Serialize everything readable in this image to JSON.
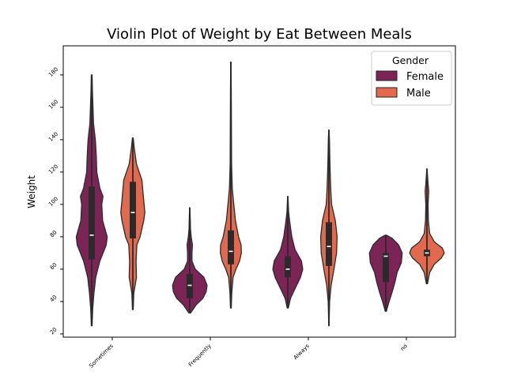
{
  "chart_data": {
    "type": "violin",
    "title": "Violin Plot of Weight by Eat Between Meals",
    "xlabel": "",
    "ylabel": "Weight",
    "ylim": [
      18,
      198
    ],
    "yticks": [
      20,
      40,
      60,
      80,
      100,
      120,
      140,
      160,
      180
    ],
    "categories": [
      "Sometimes",
      "Frequently",
      "Always",
      "no"
    ],
    "legend": {
      "title": "Gender",
      "position": "top-right"
    },
    "series": [
      {
        "name": "Female",
        "color": "#7b2455",
        "violins": [
          {
            "min": 25,
            "max": 180,
            "q1": 66,
            "median": 81,
            "q3": 111,
            "density": [
              [
                25,
                0.02
              ],
              [
                35,
                0.05
              ],
              [
                45,
                0.12
              ],
              [
                55,
                0.22
              ],
              [
                65,
                0.45
              ],
              [
                75,
                0.8
              ],
              [
                80,
                0.85
              ],
              [
                90,
                0.6
              ],
              [
                100,
                0.55
              ],
              [
                105,
                0.62
              ],
              [
                110,
                0.45
              ],
              [
                120,
                0.28
              ],
              [
                130,
                0.25
              ],
              [
                140,
                0.2
              ],
              [
                150,
                0.1
              ],
              [
                160,
                0.07
              ],
              [
                170,
                0.04
              ],
              [
                180,
                0.02
              ]
            ]
          },
          {
            "min": 33,
            "max": 98,
            "q1": 42,
            "median": 50,
            "q3": 57,
            "density": [
              [
                33,
                0.05
              ],
              [
                38,
                0.35
              ],
              [
                42,
                0.72
              ],
              [
                46,
                0.9
              ],
              [
                50,
                0.95
              ],
              [
                55,
                0.78
              ],
              [
                60,
                0.3
              ],
              [
                65,
                0.12
              ],
              [
                70,
                0.12
              ],
              [
                75,
                0.15
              ],
              [
                80,
                0.08
              ],
              [
                85,
                0.04
              ],
              [
                90,
                0.03
              ],
              [
                98,
                0.01
              ]
            ]
          },
          {
            "min": 36,
            "max": 105,
            "q1": 55,
            "median": 60,
            "q3": 68,
            "density": [
              [
                36,
                0.03
              ],
              [
                42,
                0.15
              ],
              [
                48,
                0.4
              ],
              [
                55,
                0.7
              ],
              [
                60,
                0.82
              ],
              [
                65,
                0.75
              ],
              [
                72,
                0.4
              ],
              [
                80,
                0.22
              ],
              [
                88,
                0.12
              ],
              [
                95,
                0.05
              ],
              [
                105,
                0.01
              ]
            ]
          },
          {
            "min": 34,
            "max": 81,
            "q1": 52,
            "median": 68,
            "q3": 70,
            "density": [
              [
                34,
                0.03
              ],
              [
                40,
                0.18
              ],
              [
                46,
                0.35
              ],
              [
                52,
                0.5
              ],
              [
                58,
                0.62
              ],
              [
                64,
                0.85
              ],
              [
                70,
                0.9
              ],
              [
                75,
                0.7
              ],
              [
                79,
                0.35
              ],
              [
                81,
                0.05
              ]
            ]
          }
        ]
      },
      {
        "name": "Male",
        "color": "#e2694e",
        "violins": [
          {
            "min": 35,
            "max": 141,
            "q1": 79,
            "median": 95,
            "q3": 114,
            "density": [
              [
                35,
                0.02
              ],
              [
                45,
                0.05
              ],
              [
                55,
                0.2
              ],
              [
                65,
                0.18
              ],
              [
                75,
                0.22
              ],
              [
                80,
                0.4
              ],
              [
                90,
                0.6
              ],
              [
                95,
                0.66
              ],
              [
                105,
                0.58
              ],
              [
                115,
                0.5
              ],
              [
                125,
                0.2
              ],
              [
                135,
                0.08
              ],
              [
                141,
                0.02
              ]
            ]
          },
          {
            "min": 36,
            "max": 188,
            "q1": 63,
            "median": 71,
            "q3": 84,
            "density": [
              [
                36,
                0.02
              ],
              [
                45,
                0.05
              ],
              [
                55,
                0.12
              ],
              [
                60,
                0.28
              ],
              [
                65,
                0.48
              ],
              [
                70,
                0.58
              ],
              [
                75,
                0.56
              ],
              [
                80,
                0.42
              ],
              [
                90,
                0.25
              ],
              [
                100,
                0.16
              ],
              [
                110,
                0.08
              ],
              [
                125,
                0.04
              ],
              [
                150,
                0.03
              ],
              [
                170,
                0.02
              ],
              [
                188,
                0.01
              ]
            ]
          },
          {
            "min": 25,
            "max": 146,
            "q1": 62,
            "median": 74,
            "q3": 89,
            "density": [
              [
                25,
                0.01
              ],
              [
                40,
                0.04
              ],
              [
                50,
                0.12
              ],
              [
                60,
                0.28
              ],
              [
                70,
                0.42
              ],
              [
                80,
                0.45
              ],
              [
                90,
                0.35
              ],
              [
                100,
                0.15
              ],
              [
                110,
                0.1
              ],
              [
                120,
                0.07
              ],
              [
                130,
                0.05
              ],
              [
                140,
                0.03
              ],
              [
                146,
                0.01
              ]
            ]
          },
          {
            "min": 51,
            "max": 122,
            "q1": 68,
            "median": 70,
            "q3": 72,
            "density": [
              [
                51,
                0.03
              ],
              [
                58,
                0.15
              ],
              [
                63,
                0.4
              ],
              [
                67,
                0.8
              ],
              [
                70,
                0.95
              ],
              [
                73,
                0.85
              ],
              [
                77,
                0.4
              ],
              [
                82,
                0.15
              ],
              [
                90,
                0.08
              ],
              [
                100,
                0.06
              ],
              [
                108,
                0.1
              ],
              [
                113,
                0.06
              ],
              [
                118,
                0.03
              ],
              [
                122,
                0.01
              ]
            ]
          }
        ]
      }
    ]
  }
}
